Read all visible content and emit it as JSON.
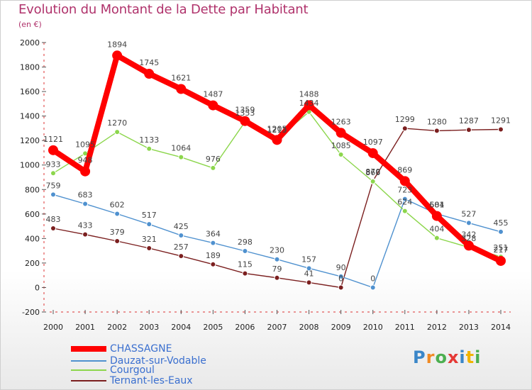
{
  "title": "Evolution du Montant de la Dette par Habitant",
  "unit": "(en €)",
  "logo": {
    "letters": [
      "P",
      "r",
      "o",
      "x",
      "i",
      "t",
      "i"
    ],
    "colors": [
      "#3a86c8",
      "#f08a24",
      "#4caf50",
      "#e53935",
      "#3a86c8",
      "#f0b400",
      "#4caf50"
    ]
  },
  "chart_data": {
    "type": "line",
    "title": "Evolution du Montant de la Dette par Habitant",
    "ylabel": "(en €)",
    "xlabel": "",
    "x": [
      2000,
      2001,
      2002,
      2003,
      2004,
      2005,
      2006,
      2007,
      2008,
      2009,
      2010,
      2011,
      2012,
      2013,
      2014
    ],
    "ylim": [
      -200,
      2000
    ],
    "yticks": [
      -200,
      0,
      200,
      400,
      600,
      800,
      1000,
      1200,
      1400,
      1600,
      1800,
      2000
    ],
    "grid": false,
    "legend_position": "bottom-left",
    "series": [
      {
        "name": "CHASSAGNE",
        "color": "#ff0000",
        "values": [
          1121,
          948,
          1894,
          1745,
          1621,
          1487,
          1359,
          1205,
          1488,
          1263,
          1097,
          869,
          584,
          342,
          217
        ]
      },
      {
        "name": "Dauzat-sur-Vodable",
        "color": "#4f91cf",
        "values": [
          759,
          683,
          602,
          517,
          425,
          364,
          298,
          230,
          157,
          90,
          0,
          723,
          601,
          527,
          455
        ]
      },
      {
        "name": "Courgoul",
        "color": "#8cd64c",
        "values": [
          933,
          1095,
          1270,
          1133,
          1064,
          976,
          1353,
          1213,
          1434,
          1085,
          866,
          624,
          404,
          328,
          251
        ]
      },
      {
        "name": "Ternant-les-Eaux",
        "color": "#7b1f1f",
        "values": [
          483,
          433,
          379,
          321,
          257,
          189,
          115,
          79,
          41,
          0,
          870,
          1299,
          1280,
          1287,
          1291
        ]
      }
    ]
  }
}
